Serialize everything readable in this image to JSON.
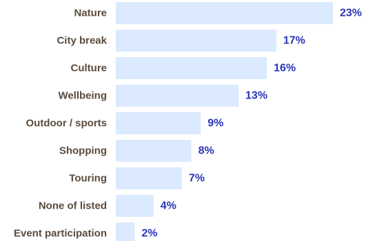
{
  "chart_data": {
    "type": "bar",
    "orientation": "horizontal",
    "categories": [
      "Nature",
      "City break",
      "Culture",
      "Wellbeing",
      "Outdoor / sports",
      "Shopping",
      "Touring",
      "None of listed",
      "Event participation"
    ],
    "values": [
      23,
      17,
      16,
      13,
      9,
      8,
      7,
      4,
      2
    ],
    "value_labels": [
      "23%",
      "17%",
      "16%",
      "13%",
      "9%",
      "8%",
      "7%",
      "4%",
      "2%"
    ],
    "title": "",
    "xlabel": "",
    "ylabel": "",
    "xlim": [
      0,
      24
    ],
    "grid": false,
    "legend": "none"
  },
  "colors": {
    "bar": "#dbeafe",
    "category_text": "#5a4a3c",
    "value_text": "#2a35b5"
  }
}
